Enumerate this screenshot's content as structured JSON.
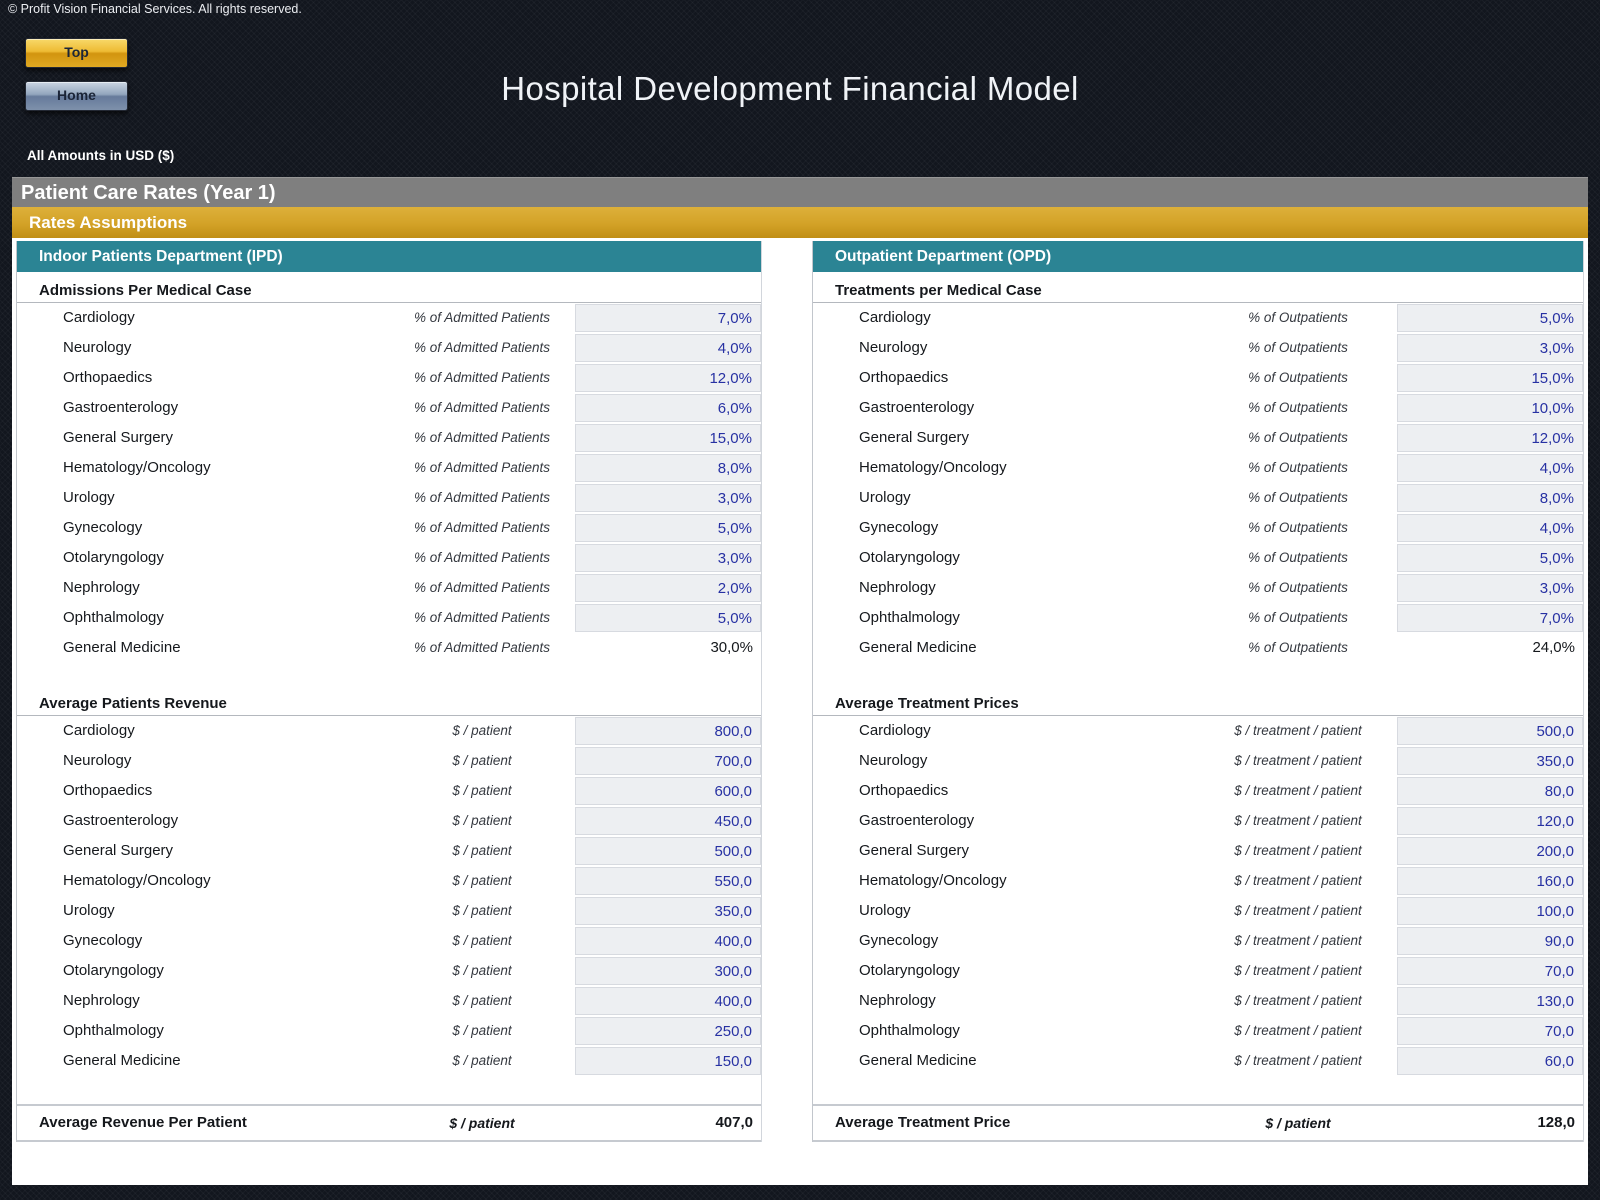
{
  "page": {
    "copyright": "© Profit Vision Financial Services. All rights reserved.",
    "title": "Hospital Development Financial Model",
    "currency_note": "All Amounts in  USD ($)",
    "nav": {
      "top_label": "Top",
      "home_label": "Home"
    },
    "section_bar": "Patient Care Rates (Year 1)",
    "subsection_bar": "Rates Assumptions"
  },
  "colors": {
    "header_teal": "#2B8494",
    "bar_gold": "#D3A227",
    "bar_gray": "#7F7F7F",
    "input_value_blue": "#2731A3",
    "cell_background": "#EDEFF2",
    "page_background_dark": "#12161E"
  },
  "ipd": {
    "header": "Indoor Patients Department (IPD)",
    "admissions": {
      "title": "Admissions Per Medical Case",
      "unit": "% of Admitted Patients",
      "rows": [
        {
          "label": "Cardiology",
          "value": "7,0%",
          "input": true
        },
        {
          "label": "Neurology",
          "value": "4,0%",
          "input": true
        },
        {
          "label": "Orthopaedics",
          "value": "12,0%",
          "input": true
        },
        {
          "label": "Gastroenterology",
          "value": "6,0%",
          "input": true
        },
        {
          "label": "General Surgery",
          "value": "15,0%",
          "input": true
        },
        {
          "label": "Hematology/Oncology",
          "value": "8,0%",
          "input": true
        },
        {
          "label": "Urology",
          "value": "3,0%",
          "input": true
        },
        {
          "label": "Gynecology",
          "value": "5,0%",
          "input": true
        },
        {
          "label": "Otolaryngology",
          "value": "3,0%",
          "input": true
        },
        {
          "label": "Nephrology",
          "value": "2,0%",
          "input": true
        },
        {
          "label": "Ophthalmology",
          "value": "5,0%",
          "input": true
        },
        {
          "label": "General Medicine",
          "value": "30,0%",
          "input": false
        }
      ]
    },
    "revenue": {
      "title": "Average Patients Revenue",
      "unit": "$ /  patient",
      "rows": [
        {
          "label": "Cardiology",
          "value": "800,0",
          "input": true
        },
        {
          "label": "Neurology",
          "value": "700,0",
          "input": true
        },
        {
          "label": "Orthopaedics",
          "value": "600,0",
          "input": true
        },
        {
          "label": "Gastroenterology",
          "value": "450,0",
          "input": true
        },
        {
          "label": "General Surgery",
          "value": "500,0",
          "input": true
        },
        {
          "label": "Hematology/Oncology",
          "value": "550,0",
          "input": true
        },
        {
          "label": "Urology",
          "value": "350,0",
          "input": true
        },
        {
          "label": "Gynecology",
          "value": "400,0",
          "input": true
        },
        {
          "label": "Otolaryngology",
          "value": "300,0",
          "input": true
        },
        {
          "label": "Nephrology",
          "value": "400,0",
          "input": true
        },
        {
          "label": "Ophthalmology",
          "value": "250,0",
          "input": true
        },
        {
          "label": "General Medicine",
          "value": "150,0",
          "input": true
        }
      ]
    },
    "summary": {
      "label": "Average Revenue Per Patient",
      "unit": "$ /  patient",
      "value": "407,0"
    }
  },
  "opd": {
    "header": "Outpatient Department (OPD)",
    "admissions": {
      "title": "Treatments per Medical Case",
      "unit": "% of Outpatients",
      "rows": [
        {
          "label": "Cardiology",
          "value": "5,0%",
          "input": true
        },
        {
          "label": "Neurology",
          "value": "3,0%",
          "input": true
        },
        {
          "label": "Orthopaedics",
          "value": "15,0%",
          "input": true
        },
        {
          "label": "Gastroenterology",
          "value": "10,0%",
          "input": true
        },
        {
          "label": "General Surgery",
          "value": "12,0%",
          "input": true
        },
        {
          "label": "Hematology/Oncology",
          "value": "4,0%",
          "input": true
        },
        {
          "label": "Urology",
          "value": "8,0%",
          "input": true
        },
        {
          "label": "Gynecology",
          "value": "4,0%",
          "input": true
        },
        {
          "label": "Otolaryngology",
          "value": "5,0%",
          "input": true
        },
        {
          "label": "Nephrology",
          "value": "3,0%",
          "input": true
        },
        {
          "label": "Ophthalmology",
          "value": "7,0%",
          "input": true
        },
        {
          "label": "General Medicine",
          "value": "24,0%",
          "input": false
        }
      ]
    },
    "revenue": {
      "title": "Average Treatment Prices",
      "unit": "$ /  treatment / patient",
      "rows": [
        {
          "label": "Cardiology",
          "value": "500,0",
          "input": true
        },
        {
          "label": "Neurology",
          "value": "350,0",
          "input": true
        },
        {
          "label": "Orthopaedics",
          "value": "80,0",
          "input": true
        },
        {
          "label": "Gastroenterology",
          "value": "120,0",
          "input": true
        },
        {
          "label": "General Surgery",
          "value": "200,0",
          "input": true
        },
        {
          "label": "Hematology/Oncology",
          "value": "160,0",
          "input": true
        },
        {
          "label": "Urology",
          "value": "100,0",
          "input": true
        },
        {
          "label": "Gynecology",
          "value": "90,0",
          "input": true
        },
        {
          "label": "Otolaryngology",
          "value": "70,0",
          "input": true
        },
        {
          "label": "Nephrology",
          "value": "130,0",
          "input": true
        },
        {
          "label": "Ophthalmology",
          "value": "70,0",
          "input": true
        },
        {
          "label": "General Medicine",
          "value": "60,0",
          "input": true
        }
      ]
    },
    "summary": {
      "label": "Average Treatment Price",
      "unit": "$ /  patient",
      "value": "128,0"
    }
  }
}
